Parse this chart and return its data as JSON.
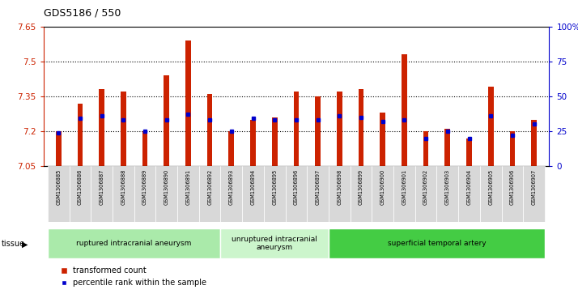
{
  "title": "GDS5186 / 550",
  "samples": [
    "GSM1306885",
    "GSM1306886",
    "GSM1306887",
    "GSM1306888",
    "GSM1306889",
    "GSM1306890",
    "GSM1306891",
    "GSM1306892",
    "GSM1306893",
    "GSM1306894",
    "GSM1306895",
    "GSM1306896",
    "GSM1306897",
    "GSM1306898",
    "GSM1306899",
    "GSM1306900",
    "GSM1306901",
    "GSM1306902",
    "GSM1306903",
    "GSM1306904",
    "GSM1306905",
    "GSM1306906",
    "GSM1306907"
  ],
  "bar_values": [
    7.2,
    7.32,
    7.38,
    7.37,
    7.2,
    7.44,
    7.59,
    7.36,
    7.2,
    7.25,
    7.26,
    7.37,
    7.35,
    7.37,
    7.38,
    7.28,
    7.53,
    7.2,
    7.21,
    7.17,
    7.39,
    7.2,
    7.25
  ],
  "percentile_values": [
    24,
    34,
    36,
    33,
    25,
    33,
    37,
    33,
    25,
    34,
    33,
    33,
    33,
    36,
    35,
    32,
    33,
    20,
    25,
    20,
    36,
    22,
    30
  ],
  "ymin": 7.05,
  "ymax": 7.65,
  "yticks": [
    7.05,
    7.2,
    7.35,
    7.5,
    7.65
  ],
  "ytick_labels": [
    "7.05",
    "7.2",
    "7.35",
    "7.5",
    "7.65"
  ],
  "y2min": 0,
  "y2max": 100,
  "y2ticks": [
    0,
    25,
    50,
    75,
    100
  ],
  "y2tick_labels": [
    "0",
    "25",
    "50",
    "75",
    "100%"
  ],
  "groups": [
    {
      "label": "ruptured intracranial aneurysm",
      "start": 0,
      "end": 8,
      "color": "#aaeaaa"
    },
    {
      "label": "unruptured intracranial\naneurysm",
      "start": 8,
      "end": 13,
      "color": "#ccf5cc"
    },
    {
      "label": "superficial temporal artery",
      "start": 13,
      "end": 23,
      "color": "#44cc44"
    }
  ],
  "bar_color": "#cc2200",
  "dot_color": "#0000cc",
  "plot_bg_color": "#ffffff",
  "tick_label_bg": "#d8d8d8",
  "left_tick_color": "#cc2200",
  "right_tick_color": "#0000cc",
  "bar_width": 0.25
}
